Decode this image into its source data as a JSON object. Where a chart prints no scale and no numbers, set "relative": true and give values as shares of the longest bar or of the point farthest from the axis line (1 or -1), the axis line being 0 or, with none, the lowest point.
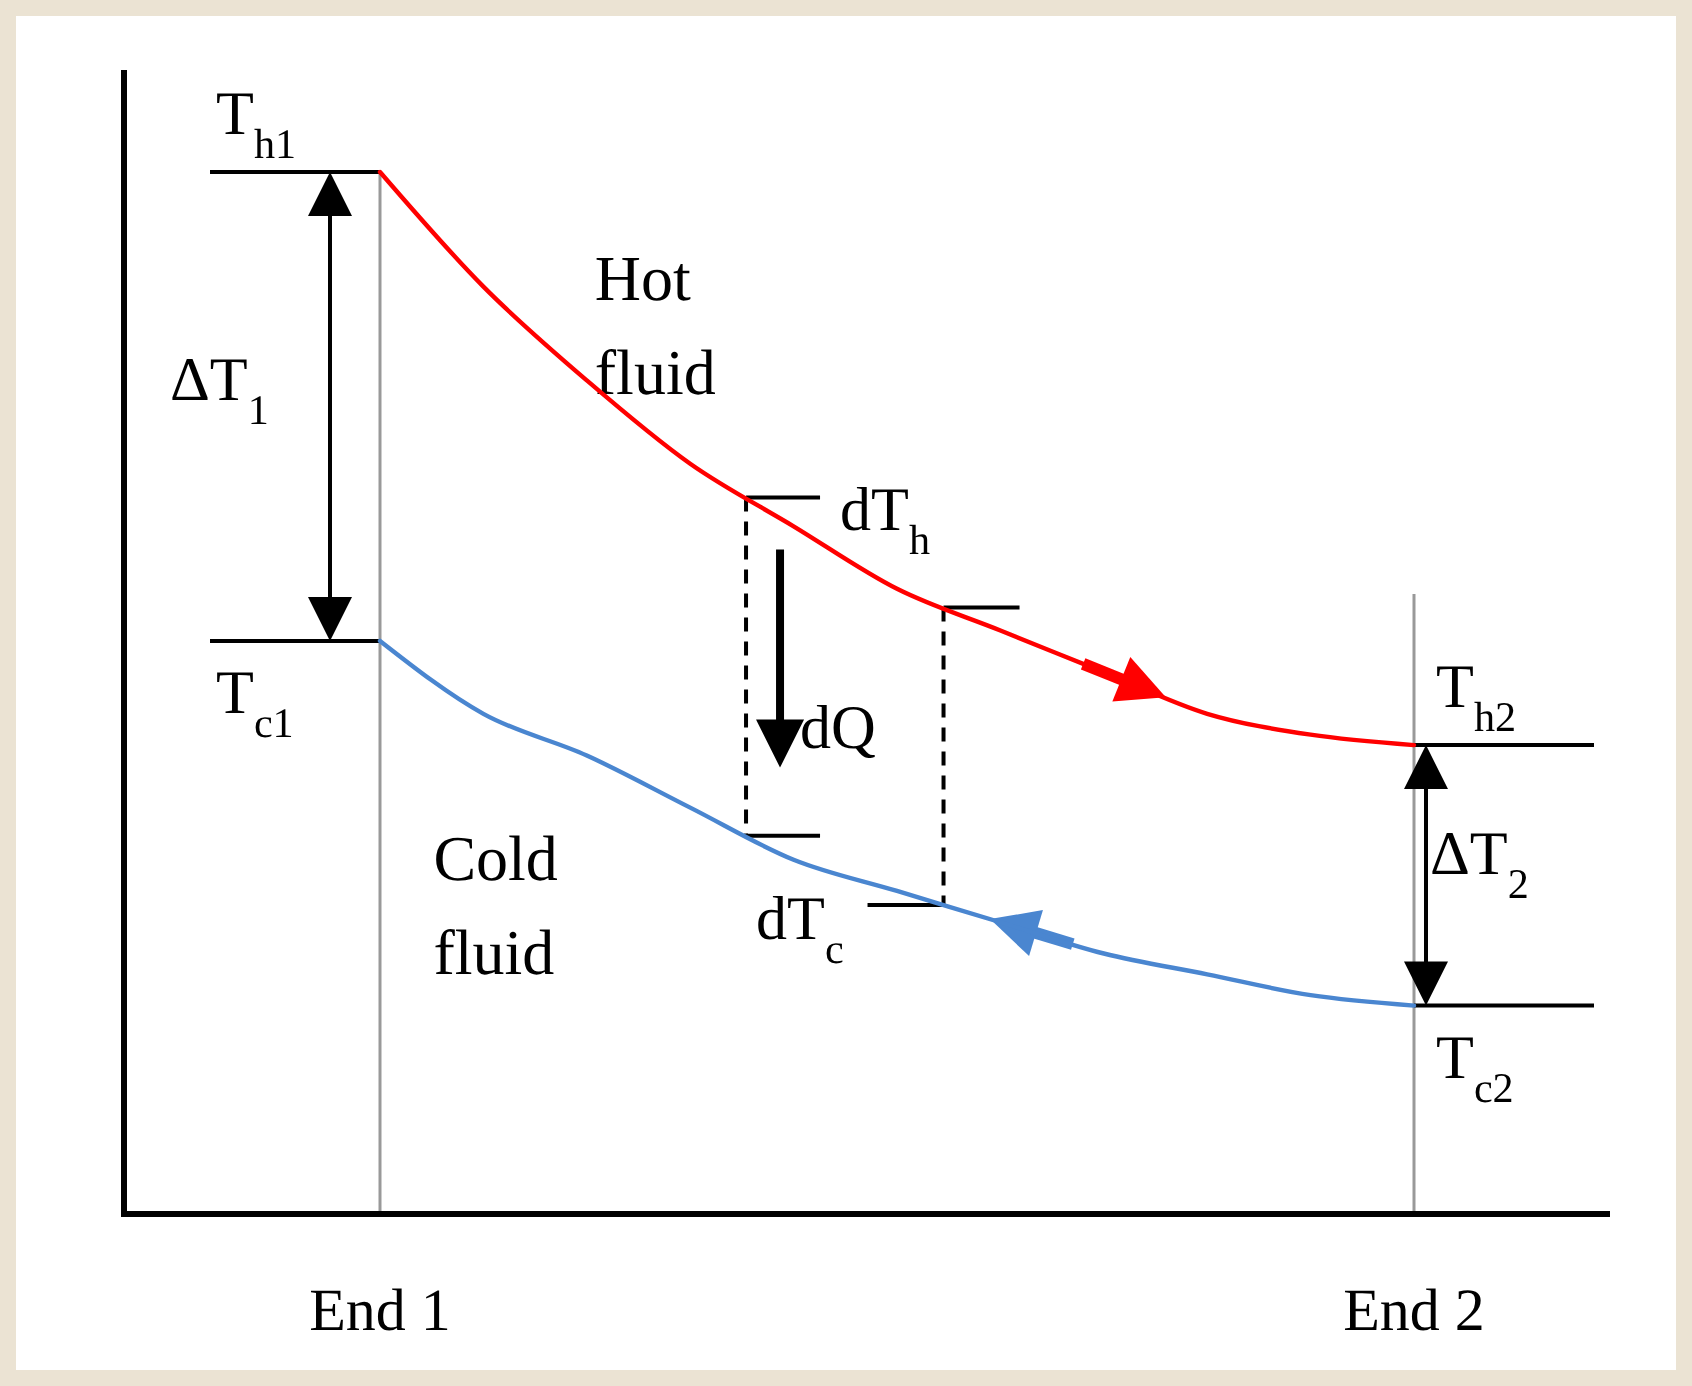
{
  "chart_data": {
    "type": "line",
    "relative": true,
    "categories": [
      "End 1",
      null,
      null,
      null,
      null,
      null,
      null,
      null,
      null,
      null,
      "End 2"
    ],
    "series": [
      {
        "name": "Hot fluid",
        "color": "#ff0000",
        "values": [
          1,
          0.89,
          0.8,
          0.72,
          0.66,
          0.6,
          0.56,
          0.52,
          0.48,
          0.46,
          0.45
        ]
      },
      {
        "name": "Cold fluid",
        "color": "#4a86d0",
        "values": [
          0.55,
          0.48,
          0.44,
          0.39,
          0.34,
          0.31,
          0.28,
          0.25,
          0.23,
          0.21,
          0.2
        ]
      }
    ],
    "ref_lines": [
      {
        "axis": "x",
        "value": "End 1",
        "color": "#999999"
      },
      {
        "axis": "x",
        "value": "End 2",
        "color": "#999999"
      }
    ],
    "annotations": [
      {
        "text": "T$_{h1}$",
        "x": "End 1",
        "y": 1
      },
      {
        "text": "T$_{c1}$",
        "x": "End 1",
        "y": 0.55
      },
      {
        "text": "T$_{h2}$",
        "x": "End 2",
        "y": 0.45
      },
      {
        "text": "T$_{c2}$",
        "x": "End 2",
        "y": 0.2
      },
      "ΔT$_{1}$",
      "dT$_{h}$",
      "dQ",
      "dT$_{c}$",
      "ΔT$_{2}$"
    ]
  }
}
